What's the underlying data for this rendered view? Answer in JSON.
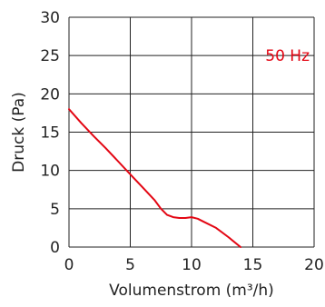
{
  "chart_data": {
    "type": "line",
    "xlabel": "Volumenstrom (m³/h)",
    "ylabel": "Druck (Pa)",
    "xlim": [
      0,
      20
    ],
    "ylim": [
      0,
      30
    ],
    "x_ticks": [
      "0",
      "5",
      "10",
      "15",
      "20"
    ],
    "y_ticks": [
      "0",
      "5",
      "10",
      "15",
      "20",
      "25",
      "30"
    ],
    "grid": true,
    "series": [
      {
        "name": "50 Hz",
        "color": "#e30613",
        "x": [
          0,
          1,
          2,
          3,
          4,
          5,
          6,
          7,
          7.5,
          8,
          8.5,
          9,
          9.5,
          10,
          10.5,
          11,
          12,
          13,
          14
        ],
        "y": [
          18,
          16.2,
          14.5,
          12.9,
          11.2,
          9.5,
          7.8,
          6.1,
          5.0,
          4.2,
          3.9,
          3.8,
          3.8,
          3.9,
          3.7,
          3.3,
          2.5,
          1.3,
          0
        ]
      }
    ]
  },
  "colors": {
    "series": "#e30613",
    "grid": "#222222",
    "text": "#222222"
  }
}
